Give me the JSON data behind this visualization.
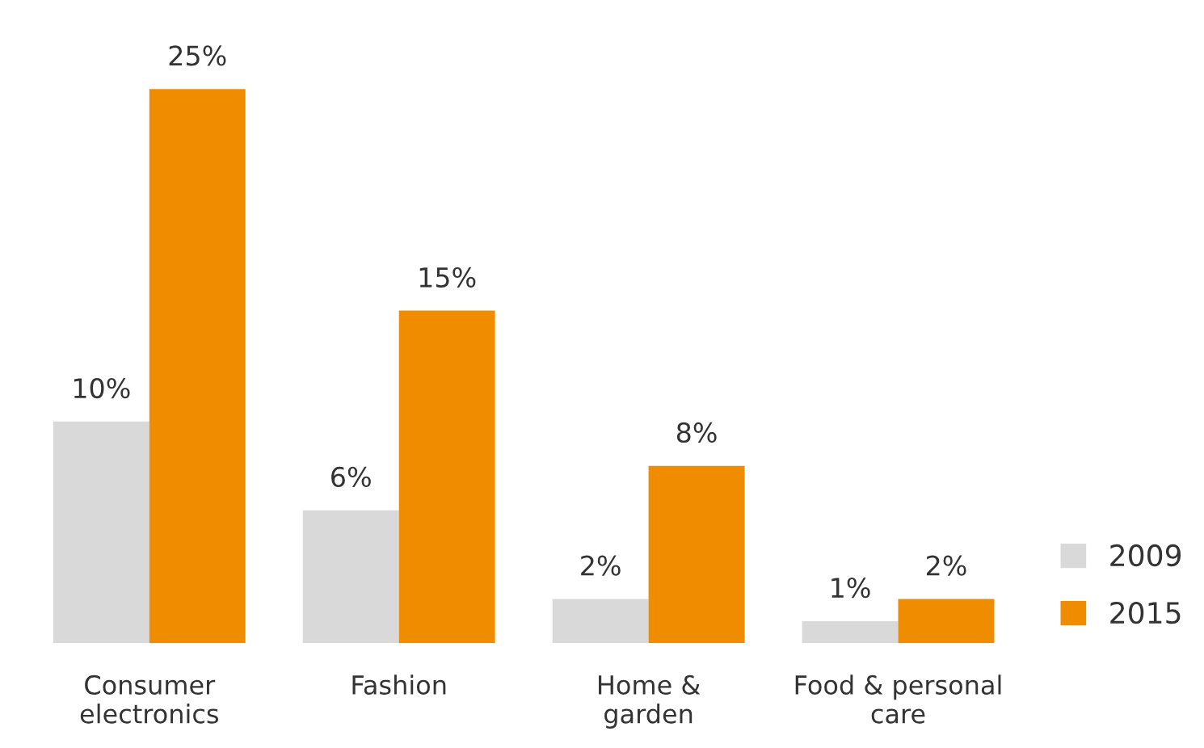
{
  "chart_data": {
    "type": "bar",
    "categories": [
      "Consumer\nelectronics",
      "Fashion",
      "Home &\ngarden",
      "Food & personal\ncare"
    ],
    "series": [
      {
        "name": "2009",
        "color": "#d9d9d9",
        "values": [
          10,
          6,
          2,
          1
        ],
        "value_labels": [
          "10%",
          "6%",
          "2%",
          "1%"
        ]
      },
      {
        "name": "2015",
        "color": "#f08c00",
        "values": [
          25,
          15,
          8,
          2
        ],
        "value_labels": [
          "25%",
          "15%",
          "8%",
          "2%"
        ]
      }
    ],
    "legend": "bottom right",
    "grid": false
  }
}
